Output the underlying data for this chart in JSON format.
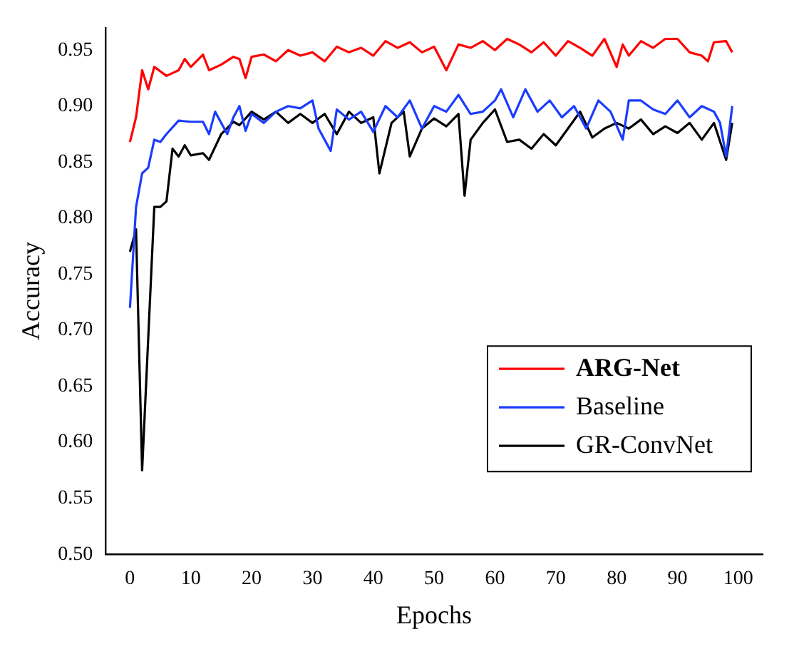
{
  "chart_data": {
    "type": "line",
    "xlabel": "Epochs",
    "ylabel": "Accuracy",
    "xlim": [
      -4,
      104
    ],
    "ylim": [
      0.5,
      0.97
    ],
    "xticks": [
      0,
      10,
      20,
      30,
      40,
      50,
      60,
      70,
      80,
      90,
      100
    ],
    "yticks": [
      {
        "value": 0.5,
        "label": "0.50"
      },
      {
        "value": 0.55,
        "label": "0.55"
      },
      {
        "value": 0.6,
        "label": "0.60"
      },
      {
        "value": 0.65,
        "label": "0.65"
      },
      {
        "value": 0.7,
        "label": "0.70"
      },
      {
        "value": 0.75,
        "label": "0.75"
      },
      {
        "value": 0.8,
        "label": "0.80"
      },
      {
        "value": 0.85,
        "label": "0.85"
      },
      {
        "value": 0.9,
        "label": "0.90"
      },
      {
        "value": 0.95,
        "label": "0.95"
      }
    ],
    "grid": false,
    "legend": "bottom right",
    "marker": "none",
    "line_style": "solid",
    "series": [
      {
        "name": "ARG-Net",
        "color": "#ff0000",
        "x": [
          0,
          1,
          2,
          3,
          4,
          6,
          8,
          9,
          10,
          12,
          13,
          15,
          17,
          18,
          19,
          20,
          22,
          24,
          26,
          28,
          30,
          32,
          34,
          36,
          38,
          40,
          42,
          44,
          46,
          48,
          50,
          52,
          54,
          56,
          58,
          60,
          62,
          64,
          66,
          68,
          70,
          72,
          74,
          76,
          78,
          80,
          81,
          82,
          84,
          86,
          88,
          90,
          92,
          94,
          95,
          96,
          98,
          99
        ],
        "values": [
          0.868,
          0.89,
          0.932,
          0.915,
          0.935,
          0.927,
          0.932,
          0.942,
          0.935,
          0.946,
          0.932,
          0.937,
          0.944,
          0.942,
          0.925,
          0.944,
          0.946,
          0.94,
          0.95,
          0.945,
          0.948,
          0.94,
          0.953,
          0.948,
          0.952,
          0.945,
          0.958,
          0.952,
          0.957,
          0.948,
          0.953,
          0.932,
          0.955,
          0.952,
          0.958,
          0.95,
          0.96,
          0.955,
          0.948,
          0.957,
          0.945,
          0.958,
          0.952,
          0.945,
          0.96,
          0.935,
          0.955,
          0.945,
          0.958,
          0.952,
          0.96,
          0.96,
          0.948,
          0.945,
          0.94,
          0.957,
          0.958,
          0.948
        ]
      },
      {
        "name": "Baseline",
        "color": "#1a3cff",
        "x": [
          0,
          1,
          2,
          3,
          4,
          5,
          6,
          8,
          10,
          12,
          13,
          14,
          16,
          17,
          18,
          19,
          20,
          22,
          24,
          26,
          28,
          30,
          31,
          33,
          34,
          36,
          38,
          40,
          42,
          44,
          46,
          48,
          50,
          52,
          54,
          56,
          58,
          60,
          61,
          63,
          65,
          67,
          69,
          71,
          73,
          75,
          77,
          79,
          81,
          82,
          84,
          86,
          88,
          90,
          92,
          94,
          96,
          97,
          98,
          99
        ],
        "values": [
          0.72,
          0.81,
          0.84,
          0.845,
          0.87,
          0.868,
          0.875,
          0.887,
          0.886,
          0.886,
          0.875,
          0.895,
          0.875,
          0.89,
          0.9,
          0.878,
          0.893,
          0.885,
          0.895,
          0.9,
          0.898,
          0.905,
          0.88,
          0.86,
          0.897,
          0.888,
          0.895,
          0.877,
          0.9,
          0.89,
          0.905,
          0.88,
          0.9,
          0.895,
          0.91,
          0.893,
          0.895,
          0.905,
          0.915,
          0.89,
          0.915,
          0.895,
          0.905,
          0.89,
          0.9,
          0.88,
          0.905,
          0.895,
          0.87,
          0.905,
          0.905,
          0.897,
          0.893,
          0.905,
          0.89,
          0.9,
          0.895,
          0.885,
          0.855,
          0.9
        ]
      },
      {
        "name": "GR-ConvNet",
        "color": "#000000",
        "x": [
          0,
          1,
          2,
          4,
          5,
          6,
          7,
          8,
          9,
          10,
          12,
          13,
          15,
          17,
          18,
          20,
          22,
          24,
          26,
          28,
          30,
          32,
          34,
          36,
          38,
          40,
          41,
          43,
          45,
          46,
          48,
          50,
          52,
          54,
          55,
          56,
          58,
          60,
          62,
          64,
          66,
          68,
          70,
          72,
          74,
          76,
          78,
          80,
          82,
          84,
          86,
          88,
          90,
          92,
          94,
          96,
          98,
          99
        ],
        "values": [
          0.77,
          0.79,
          0.575,
          0.81,
          0.81,
          0.815,
          0.862,
          0.855,
          0.865,
          0.856,
          0.858,
          0.852,
          0.875,
          0.886,
          0.883,
          0.895,
          0.888,
          0.895,
          0.885,
          0.893,
          0.885,
          0.893,
          0.875,
          0.895,
          0.885,
          0.89,
          0.84,
          0.885,
          0.895,
          0.855,
          0.88,
          0.889,
          0.882,
          0.893,
          0.82,
          0.87,
          0.885,
          0.897,
          0.868,
          0.87,
          0.862,
          0.875,
          0.865,
          0.88,
          0.895,
          0.872,
          0.88,
          0.885,
          0.88,
          0.888,
          0.875,
          0.882,
          0.876,
          0.885,
          0.87,
          0.885,
          0.852,
          0.885
        ]
      }
    ]
  }
}
